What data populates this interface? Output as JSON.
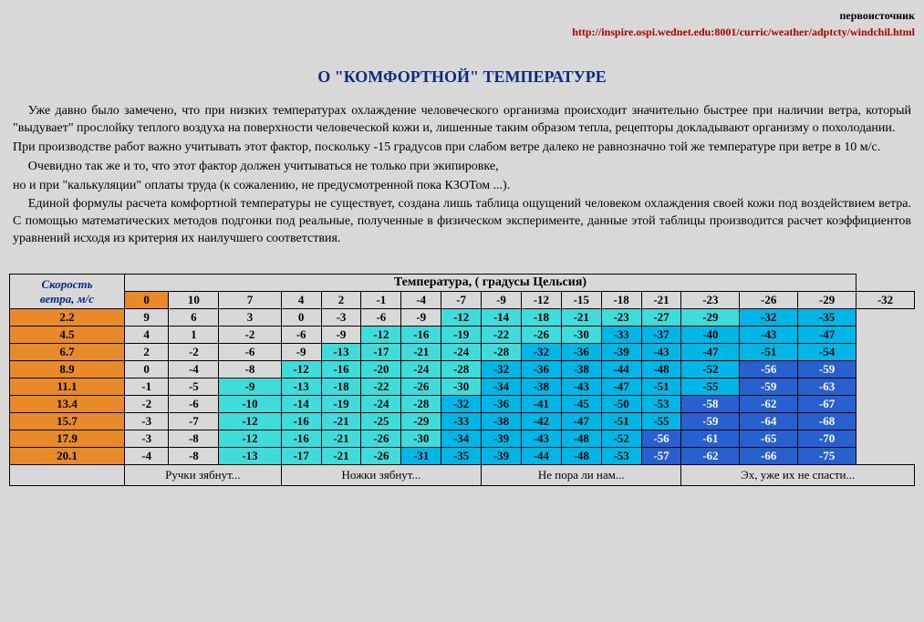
{
  "header": {
    "source_label": "первоисточник",
    "source_url": "http://inspire.ospi.wednet.edu:8001/curric/weather/adptcty/windchil.html"
  },
  "title": "О \"КОМФОРТНОЙ\" ТЕМПЕРАТУРЕ",
  "paragraphs": {
    "p1": "Уже давно было замечено, что при низких температурах охлаждение человеческого организма происходит значительно быстрее при наличии ветра, который \"выдувает\" прослойку теплого воздуха на поверхности человеческой кожи и, лишенные таким образом тепла,  рецепторы докладывают организму о похолодании.",
    "p2": "При производстве работ важно учитывать этот фактор, поскольку -15 градусов при слабом  ветре далеко не равнозначно той же температуре при ветре в 10 м/с.",
    "p3": "Очевидно так же и то, что этот фактор должен учитываться не только при экипировке,",
    "p4": "но и при \"калькуляции\" оплаты труда (к сожалению, не предусмотренной пока КЗОТом ...).",
    "p5": "Единой формулы расчета комфортной температуры не существует, создана лишь таблица ощущений человеком охлаждения своей кожи под воздействием ветра. С помощью математических методов подгонки под реальные, полученные в физическом эксперименте, данные этой таблицы производится расчет  коэффициентов уравнений исходя из критерия их наилучшего соответствия."
  },
  "table": {
    "left_header_l1": "Скорость",
    "left_header_l2": "ветра, м/с",
    "main_header": "Температура, ( градусы Цельсия)",
    "temp_cols": [
      "10",
      "7",
      "4",
      "2",
      "-1",
      "-4",
      "-7",
      "-9",
      "-12",
      "-15",
      "-18",
      "-21",
      "-23",
      "-26",
      "-29",
      "-32"
    ],
    "speeds": [
      "0",
      "2.2",
      "4.5",
      "6.7",
      "8.9",
      "11.1",
      "13.4",
      "15.7",
      "17.9",
      "20.1"
    ],
    "rows": [
      {
        "v": [
          "9",
          "6",
          "3",
          "0",
          "-3",
          "-6",
          "-9",
          "-12",
          "-14",
          "-18",
          "-21",
          "-23",
          "-27",
          "-29",
          "-32",
          "-35"
        ],
        "z": [
          0,
          0,
          0,
          0,
          0,
          0,
          0,
          1,
          1,
          1,
          1,
          1,
          1,
          1,
          2,
          2
        ]
      },
      {
        "v": [
          "4",
          "1",
          "-2",
          "-6",
          "-9",
          "-12",
          "-16",
          "-19",
          "-22",
          "-26",
          "-30",
          "-33",
          "-37",
          "-40",
          "-43",
          "-47"
        ],
        "z": [
          0,
          0,
          0,
          0,
          0,
          1,
          1,
          1,
          1,
          1,
          1,
          2,
          2,
          2,
          2,
          2
        ]
      },
      {
        "v": [
          "2",
          "-2",
          "-6",
          "-9",
          "-13",
          "-17",
          "-21",
          "-24",
          "-28",
          "-32",
          "-36",
          "-39",
          "-43",
          "-47",
          "-51",
          "-54"
        ],
        "z": [
          0,
          0,
          0,
          0,
          1,
          1,
          1,
          1,
          1,
          2,
          2,
          2,
          2,
          2,
          2,
          2
        ]
      },
      {
        "v": [
          "0",
          "-4",
          "-8",
          "-12",
          "-16",
          "-20",
          "-24",
          "-28",
          "-32",
          "-36",
          "-38",
          "-44",
          "-48",
          "-52",
          "-56",
          "-59"
        ],
        "z": [
          0,
          0,
          0,
          1,
          1,
          1,
          1,
          1,
          2,
          2,
          2,
          2,
          2,
          2,
          3,
          3
        ]
      },
      {
        "v": [
          "-1",
          "-5",
          "-9",
          "-13",
          "-18",
          "-22",
          "-26",
          "-30",
          "-34",
          "-38",
          "-43",
          "-47",
          "-51",
          "-55",
          "-59",
          "-63"
        ],
        "z": [
          0,
          0,
          1,
          1,
          1,
          1,
          1,
          1,
          2,
          2,
          2,
          2,
          2,
          2,
          3,
          3
        ]
      },
      {
        "v": [
          "-2",
          "-6",
          "-10",
          "-14",
          "-19",
          "-24",
          "-28",
          "-32",
          "-36",
          "-41",
          "-45",
          "-50",
          "-53",
          "-58",
          "-62",
          "-67"
        ],
        "z": [
          0,
          0,
          1,
          1,
          1,
          1,
          1,
          2,
          2,
          2,
          2,
          2,
          2,
          3,
          3,
          3
        ]
      },
      {
        "v": [
          "-3",
          "-7",
          "-12",
          "-16",
          "-21",
          "-25",
          "-29",
          "-33",
          "-38",
          "-42",
          "-47",
          "-51",
          "-55",
          "-59",
          "-64",
          "-68"
        ],
        "z": [
          0,
          0,
          1,
          1,
          1,
          1,
          1,
          2,
          2,
          2,
          2,
          2,
          2,
          3,
          3,
          3
        ]
      },
      {
        "v": [
          "-3",
          "-8",
          "-12",
          "-16",
          "-21",
          "-26",
          "-30",
          "-34",
          "-39",
          "-43",
          "-48",
          "-52",
          "-56",
          "-61",
          "-65",
          "-70"
        ],
        "z": [
          0,
          0,
          1,
          1,
          1,
          1,
          1,
          2,
          2,
          2,
          2,
          2,
          3,
          3,
          3,
          3
        ]
      },
      {
        "v": [
          "-4",
          "-8",
          "-13",
          "-17",
          "-21",
          "-26",
          "-31",
          "-35",
          "-39",
          "-44",
          "-48",
          "-53",
          "-57",
          "-62",
          "-66",
          "-75"
        ],
        "z": [
          0,
          0,
          1,
          1,
          1,
          1,
          2,
          2,
          2,
          2,
          2,
          2,
          3,
          3,
          3,
          3
        ]
      }
    ],
    "footer_labels": [
      "Ручки зябнут...",
      "Ножки зябнут...",
      "Не пора ли нам...",
      "Эх, уже их не спасти..."
    ],
    "footer_spans": [
      3,
      5,
      5,
      4
    ],
    "zone_colors": [
      "#d8d8d8",
      "#40dcdc",
      "#00b6e6",
      "#2860d0"
    ],
    "speed_bg": "#e88a2a",
    "title_color": "#0b2a80"
  }
}
